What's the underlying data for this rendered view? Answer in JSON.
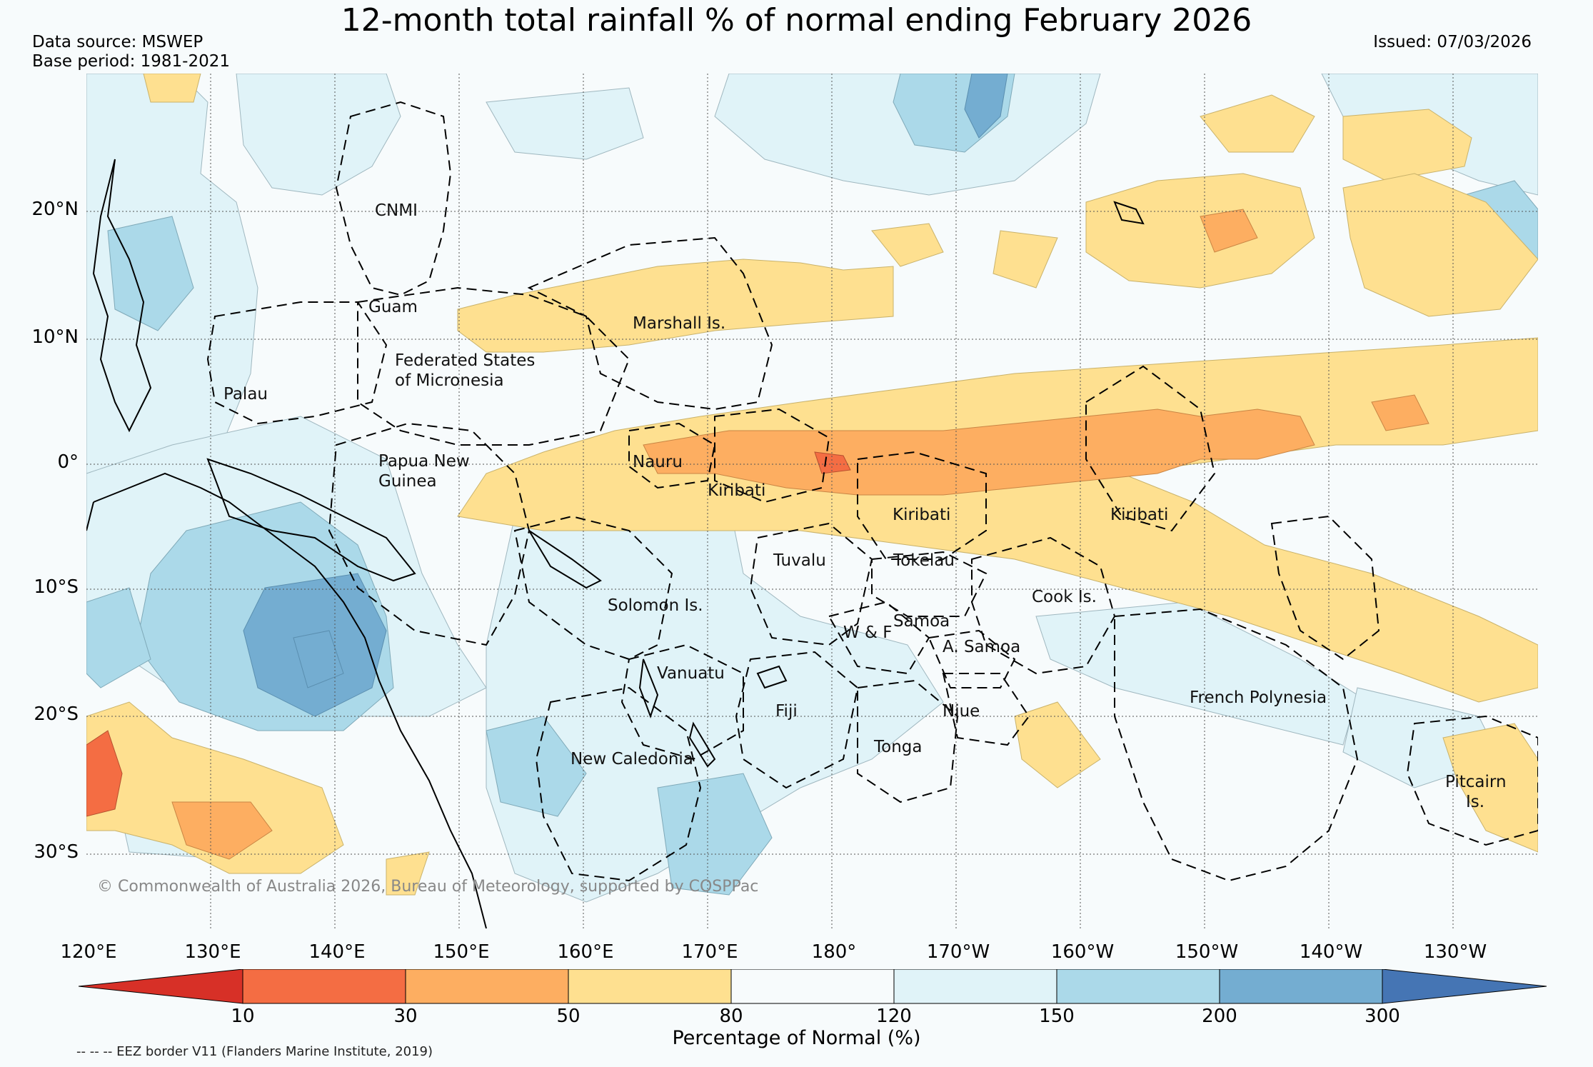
{
  "title": "12-month total rainfall % of normal ending February 2026",
  "data_source": "Data source: MSWEP",
  "base_period": "Base period: 1981-2021",
  "issued": "Issued: 07/03/2026",
  "copyright": "© Commonwealth of Australia 2026, Bureau of Meteorology, supported by COSPPac",
  "lat_labels": [
    "20°N",
    "10°N",
    "0°",
    "10°S",
    "20°S",
    "30°S"
  ],
  "lon_labels": [
    "120°E",
    "130°E",
    "140°E",
    "150°E",
    "160°E",
    "170°E",
    "180°",
    "170°W",
    "160°W",
    "150°W",
    "140°W",
    "130°W"
  ],
  "region_labels": {
    "cnmi": "CNMI",
    "guam": "Guam",
    "marshall": "Marshall Is.",
    "fsm_1": "Federated States",
    "fsm_2": "of Micronesia",
    "palau": "Palau",
    "png_1": "Papua New",
    "png_2": "Guinea",
    "nauru": "Nauru",
    "kiribati_w": "Kiribati",
    "kiribati_c": "Kiribati",
    "kiribati_e": "Kiribati",
    "tuvalu": "Tuvalu",
    "tokelau": "Tokelau",
    "cook": "Cook Is.",
    "solomon": "Solomon Is.",
    "samoa": "Samoa",
    "wf": "W & F",
    "asamoa": "A. Samoa",
    "vanuatu": "Vanuatu",
    "fiji": "Fiji",
    "niue": "Niue",
    "tonga": "Tonga",
    "newcal": "New Caledonia",
    "frenchpoly": "French Polynesia",
    "pitcairn_1": "Pitcairn",
    "pitcairn_2": "Is."
  },
  "colorbar": {
    "ticks": [
      "10",
      "30",
      "50",
      "80",
      "120",
      "150",
      "200",
      "300"
    ],
    "title": "Percentage of Normal (%)",
    "colors": {
      "lt10": "#d73027",
      "c10_30": "#f46d43",
      "c30_50": "#fdae61",
      "c50_80": "#fee090",
      "c80_120": "#f7fbfc",
      "c120_150": "#e0f3f8",
      "c150_200": "#abd9e9",
      "c200_300": "#74add1",
      "gt300": "#4575b4"
    }
  },
  "legend_note": "-- -- -- EEZ border V11 (Flanders Marine Institute, 2019)"
}
